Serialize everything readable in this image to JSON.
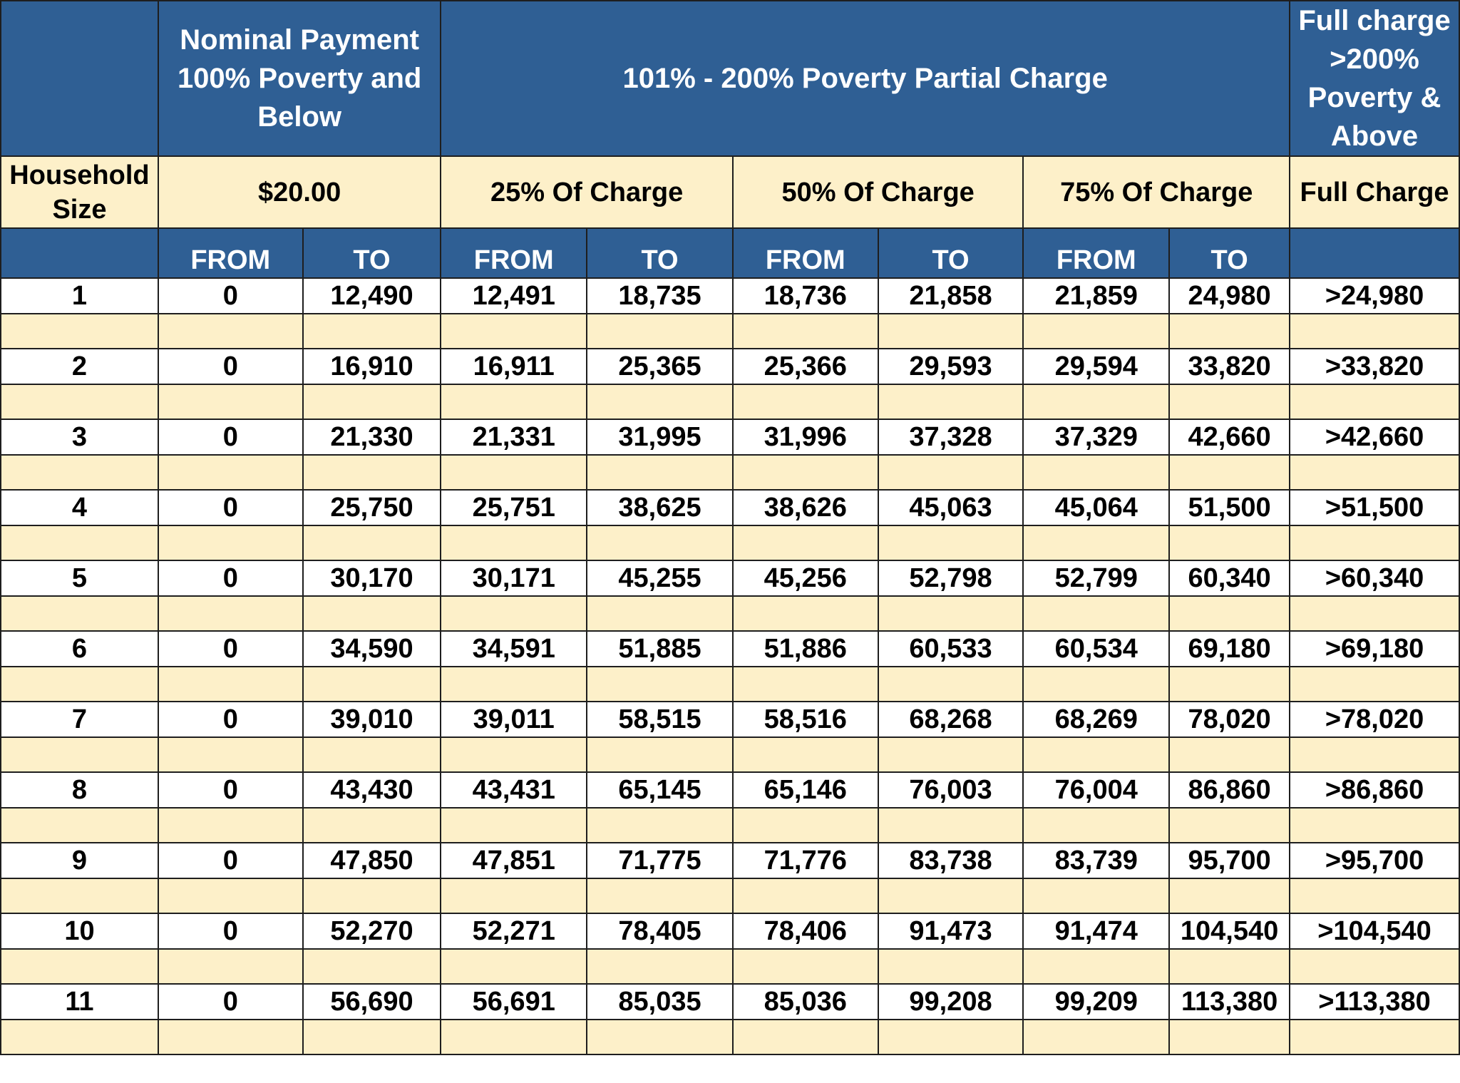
{
  "header": {
    "nominal_title": "Nominal Payment 100% Poverty and Below",
    "partial_title": "101% - 200% Poverty Partial Charge",
    "full_title": "Full charge >200% Poverty & Above",
    "household_size": "Household Size",
    "nominal_amount": "$20.00",
    "pct25": "25% Of Charge",
    "pct50": "50% Of Charge",
    "pct75": "75% Of Charge",
    "full_charge": "Full Charge",
    "from": "FROM",
    "to": "TO"
  },
  "rows": [
    {
      "size": "1",
      "nom_from": "0",
      "nom_to": "12,490",
      "p25_from": "12,491",
      "p25_to": "18,735",
      "p50_from": "18,736",
      "p50_to": "21,858",
      "p75_from": "21,859",
      "p75_to": "24,980",
      "full": ">24,980"
    },
    {
      "size": "2",
      "nom_from": "0",
      "nom_to": "16,910",
      "p25_from": "16,911",
      "p25_to": "25,365",
      "p50_from": "25,366",
      "p50_to": "29,593",
      "p75_from": "29,594",
      "p75_to": "33,820",
      "full": ">33,820"
    },
    {
      "size": "3",
      "nom_from": "0",
      "nom_to": "21,330",
      "p25_from": "21,331",
      "p25_to": "31,995",
      "p50_from": "31,996",
      "p50_to": "37,328",
      "p75_from": "37,329",
      "p75_to": "42,660",
      "full": ">42,660"
    },
    {
      "size": "4",
      "nom_from": "0",
      "nom_to": "25,750",
      "p25_from": "25,751",
      "p25_to": "38,625",
      "p50_from": "38,626",
      "p50_to": "45,063",
      "p75_from": "45,064",
      "p75_to": "51,500",
      "full": ">51,500"
    },
    {
      "size": "5",
      "nom_from": "0",
      "nom_to": "30,170",
      "p25_from": "30,171",
      "p25_to": "45,255",
      "p50_from": "45,256",
      "p50_to": "52,798",
      "p75_from": "52,799",
      "p75_to": "60,340",
      "full": ">60,340"
    },
    {
      "size": "6",
      "nom_from": "0",
      "nom_to": "34,590",
      "p25_from": "34,591",
      "p25_to": "51,885",
      "p50_from": "51,886",
      "p50_to": "60,533",
      "p75_from": "60,534",
      "p75_to": "69,180",
      "full": ">69,180"
    },
    {
      "size": "7",
      "nom_from": "0",
      "nom_to": "39,010",
      "p25_from": "39,011",
      "p25_to": "58,515",
      "p50_from": "58,516",
      "p50_to": "68,268",
      "p75_from": "68,269",
      "p75_to": "78,020",
      "full": ">78,020"
    },
    {
      "size": "8",
      "nom_from": "0",
      "nom_to": "43,430",
      "p25_from": "43,431",
      "p25_to": "65,145",
      "p50_from": "65,146",
      "p50_to": "76,003",
      "p75_from": "76,004",
      "p75_to": "86,860",
      "full": ">86,860"
    },
    {
      "size": "9",
      "nom_from": "0",
      "nom_to": "47,850",
      "p25_from": "47,851",
      "p25_to": "71,775",
      "p50_from": "71,776",
      "p50_to": "83,738",
      "p75_from": "83,739",
      "p75_to": "95,700",
      "full": ">95,700"
    },
    {
      "size": "10",
      "nom_from": "0",
      "nom_to": "52,270",
      "p25_from": "52,271",
      "p25_to": "78,405",
      "p50_from": "78,406",
      "p50_to": "91,473",
      "p75_from": "91,474",
      "p75_to": "104,540",
      "full": ">104,540"
    },
    {
      "size": "11",
      "nom_from": "0",
      "nom_to": "56,690",
      "p25_from": "56,691",
      "p25_to": "85,035",
      "p50_from": "85,036",
      "p50_to": "99,208",
      "p75_from": "99,209",
      "p75_to": "113,380",
      "full": ">113,380"
    }
  ]
}
